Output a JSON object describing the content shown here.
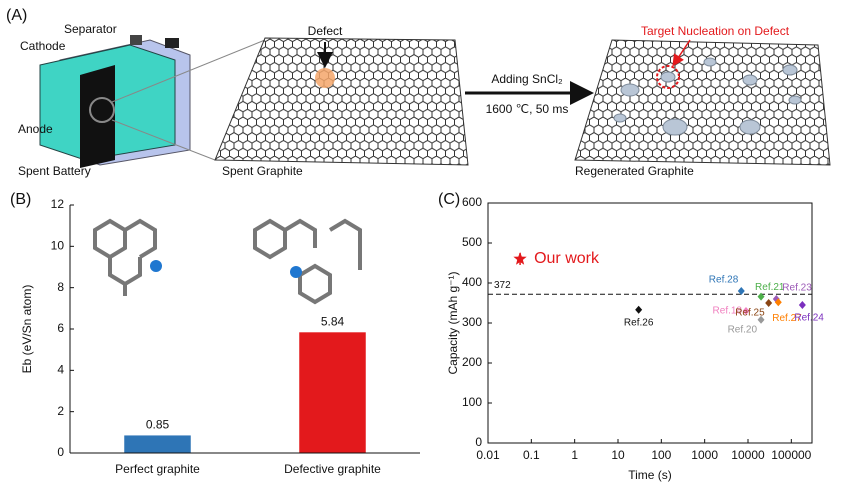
{
  "panel_a": {
    "label": "(A)",
    "separator": "Separator",
    "cathode": "Cathode",
    "anode": "Anode",
    "battery": "Spent Battery",
    "defect": "Defect",
    "spent": "Spent Graphite",
    "step": "Adding SnCl₂",
    "conditions": "1600 ℃, 50 ms",
    "target": "Target Nucleation on Defect",
    "regenerated": "Regenerated Graphite"
  },
  "chart_data": [
    {
      "type": "bar",
      "panel": "(B)",
      "ylabel": "Eb (eV/Sn atom)",
      "categories": [
        "Perfect graphite",
        "Defective graphite"
      ],
      "values": [
        0.85,
        5.84
      ],
      "colors": [
        "#2e75b6",
        "#e3191c"
      ],
      "ylim": [
        0,
        12
      ],
      "yticks": [
        0,
        2,
        4,
        6,
        8,
        10,
        12
      ]
    },
    {
      "type": "scatter",
      "panel": "(C)",
      "xlabel": "Time (s)",
      "ylabel": "Capacity (mAh g⁻¹)",
      "log_x": true,
      "xlim": [
        0.01,
        300000
      ],
      "xticks": [
        0.01,
        0.1,
        1,
        10,
        100,
        1000,
        10000,
        100000
      ],
      "ylim": [
        0,
        600
      ],
      "yticks": [
        0,
        100,
        200,
        300,
        400,
        500,
        600
      ],
      "hline": 372,
      "series": [
        {
          "name": "Our work",
          "color": "#e3191c",
          "marker": "star",
          "x": [
            0.055
          ],
          "values": [
            460
          ],
          "errors": [
            15
          ]
        },
        {
          "name": "Ref.26",
          "color": "#111111",
          "marker": "diamond",
          "x": [
            30
          ],
          "values": [
            333
          ]
        },
        {
          "name": "Ref.28",
          "color": "#2e75b6",
          "marker": "diamond",
          "x": [
            7000
          ],
          "values": [
            380
          ]
        },
        {
          "name": "Ref.21",
          "color": "#4daf4a",
          "marker": "diamond",
          "x": [
            20000
          ],
          "values": [
            366
          ]
        },
        {
          "name": "Ref.23",
          "color": "#9b59b6",
          "marker": "diamond",
          "x": [
            45000
          ],
          "values": [
            360
          ]
        },
        {
          "name": "Ref.18",
          "color": "#f07fbf",
          "marker": "diamond",
          "x": [
            9000
          ],
          "values": [
            330
          ]
        },
        {
          "name": "Ref.25",
          "color": "#8b4513",
          "marker": "diamond",
          "x": [
            30000
          ],
          "values": [
            350
          ]
        },
        {
          "name": "Ref.20",
          "color": "#999999",
          "marker": "diamond",
          "x": [
            20000
          ],
          "values": [
            308
          ]
        },
        {
          "name": "Ref.27",
          "color": "#ff7f00",
          "marker": "diamond",
          "x": [
            50000
          ],
          "values": [
            352
          ]
        },
        {
          "name": "Ref.24",
          "color": "#7b2fbe",
          "marker": "diamond",
          "x": [
            180000
          ],
          "values": [
            345
          ]
        }
      ]
    }
  ]
}
